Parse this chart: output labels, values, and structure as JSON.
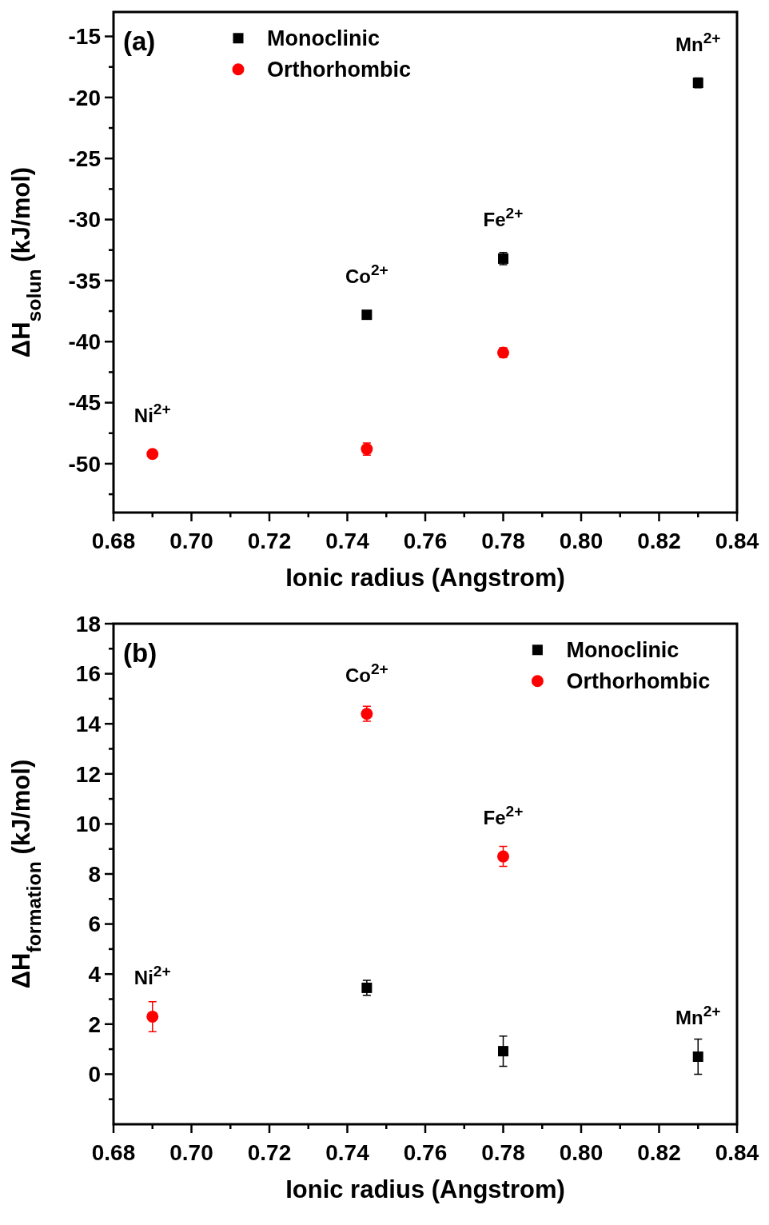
{
  "chart_data": [
    {
      "type": "scatter",
      "xlabel": "Ionic radius (Angstrom)",
      "ylabel": "ΔH$_{solun}$ (kJ/mol)",
      "xlim": [
        0.68,
        0.84
      ],
      "ylim": [
        -54,
        -13
      ],
      "xticks": [
        {
          "value": 0.68,
          "label": "0.68"
        },
        {
          "value": 0.69,
          "label": null
        },
        {
          "value": 0.7,
          "label": "0.70"
        },
        {
          "value": 0.71,
          "label": null
        },
        {
          "value": 0.72,
          "label": "0.72"
        },
        {
          "value": 0.73,
          "label": null
        },
        {
          "value": 0.74,
          "label": "0.74"
        },
        {
          "value": 0.75,
          "label": null
        },
        {
          "value": 0.76,
          "label": "0.76"
        },
        {
          "value": 0.77,
          "label": null
        },
        {
          "value": 0.78,
          "label": "0.78"
        },
        {
          "value": 0.79,
          "label": null
        },
        {
          "value": 0.8,
          "label": "0.80"
        },
        {
          "value": 0.81,
          "label": null
        },
        {
          "value": 0.82,
          "label": "0.82"
        },
        {
          "value": 0.83,
          "label": null
        },
        {
          "value": 0.84,
          "label": "0.84"
        }
      ],
      "yticks": [
        {
          "value": -52.5,
          "label": null
        },
        -50,
        {
          "value": -47.5,
          "label": null
        },
        -45,
        {
          "value": -42.5,
          "label": null
        },
        -40,
        {
          "value": -37.5,
          "label": null
        },
        -35,
        {
          "value": -32.5,
          "label": null
        },
        -30,
        {
          "value": -27.5,
          "label": null
        },
        -25,
        {
          "value": -22.5,
          "label": null
        },
        -20,
        {
          "value": -17.5,
          "label": null
        },
        -15
      ],
      "legend": "top",
      "grid": false,
      "series": [
        {
          "name": "Monoclinic",
          "color": "#000000",
          "marker": "square",
          "x": [
            0.745,
            0.78,
            0.83
          ],
          "values": [
            -37.8,
            -33.2,
            -18.8
          ],
          "errors": [
            null,
            0.5,
            0.4
          ]
        },
        {
          "name": "Orthorhombic",
          "color": "#ff0000",
          "marker": "circle",
          "x": [
            0.69,
            0.745,
            0.78
          ],
          "values": [
            -49.2,
            -48.8,
            -40.9
          ],
          "errors": [
            0.3,
            0.5,
            0.4
          ]
        }
      ],
      "annotations": [
        "(a)",
        {
          "text": "Ni$^{2+}$",
          "x": 0.69,
          "y": -49.2
        },
        {
          "text": "Co$^{2+}$",
          "x": 0.745,
          "y": -37.8
        },
        {
          "text": "Fe$^{2+}$",
          "x": 0.78,
          "y": -33.2
        },
        {
          "text": "Mn$^{2+}$",
          "x": 0.83,
          "y": -18.8
        }
      ]
    },
    {
      "type": "scatter",
      "xlabel": "Ionic radius (Angstrom)",
      "ylabel": "ΔH$_{formation}$ (kJ/mol)",
      "xlim": [
        0.68,
        0.84
      ],
      "ylim": [
        -2,
        18
      ],
      "xticks": [
        {
          "value": 0.68,
          "label": "0.68"
        },
        {
          "value": 0.69,
          "label": null
        },
        {
          "value": 0.7,
          "label": "0.70"
        },
        {
          "value": 0.71,
          "label": null
        },
        {
          "value": 0.72,
          "label": "0.72"
        },
        {
          "value": 0.73,
          "label": null
        },
        {
          "value": 0.74,
          "label": "0.74"
        },
        {
          "value": 0.75,
          "label": null
        },
        {
          "value": 0.76,
          "label": "0.76"
        },
        {
          "value": 0.77,
          "label": null
        },
        {
          "value": 0.78,
          "label": "0.78"
        },
        {
          "value": 0.79,
          "label": null
        },
        {
          "value": 0.8,
          "label": "0.80"
        },
        {
          "value": 0.81,
          "label": null
        },
        {
          "value": 0.82,
          "label": "0.82"
        },
        {
          "value": 0.83,
          "label": null
        },
        {
          "value": 0.84,
          "label": "0.84"
        }
      ],
      "yticks": [
        {
          "value": -1,
          "label": null
        },
        0,
        {
          "value": 1,
          "label": null
        },
        2,
        {
          "value": 3,
          "label": null
        },
        4,
        {
          "value": 5,
          "label": null
        },
        6,
        {
          "value": 7,
          "label": null
        },
        8,
        {
          "value": 9,
          "label": null
        },
        10,
        {
          "value": 11,
          "label": null
        },
        12,
        {
          "value": 13,
          "label": null
        },
        14,
        {
          "value": 15,
          "label": null
        },
        16,
        {
          "value": 17,
          "label": null
        },
        18
      ],
      "legend": "top right",
      "grid": false,
      "series": [
        {
          "name": "Monoclinic",
          "color": "#000000",
          "marker": "square",
          "x": [
            0.745,
            0.78,
            0.83
          ],
          "values": [
            3.45,
            0.92,
            0.7
          ],
          "errors": [
            0.3,
            0.6,
            0.7
          ]
        },
        {
          "name": "Orthorhombic",
          "color": "#ff0000",
          "marker": "circle",
          "x": [
            0.69,
            0.745,
            0.78
          ],
          "values": [
            2.3,
            14.4,
            8.7
          ],
          "errors": [
            0.6,
            0.3,
            0.4
          ]
        }
      ],
      "annotations": [
        "(b)",
        {
          "text": "Ni$^{2+}$",
          "x": 0.69,
          "y": 2.3
        },
        {
          "text": "Co$^{2+}$",
          "x": 0.745,
          "y": 14.4
        },
        {
          "text": "Fe$^{2+}$",
          "x": 0.78,
          "y": 8.7
        },
        {
          "text": "Mn$^{2+}$",
          "x": 0.83,
          "y": 0.7
        }
      ]
    }
  ]
}
